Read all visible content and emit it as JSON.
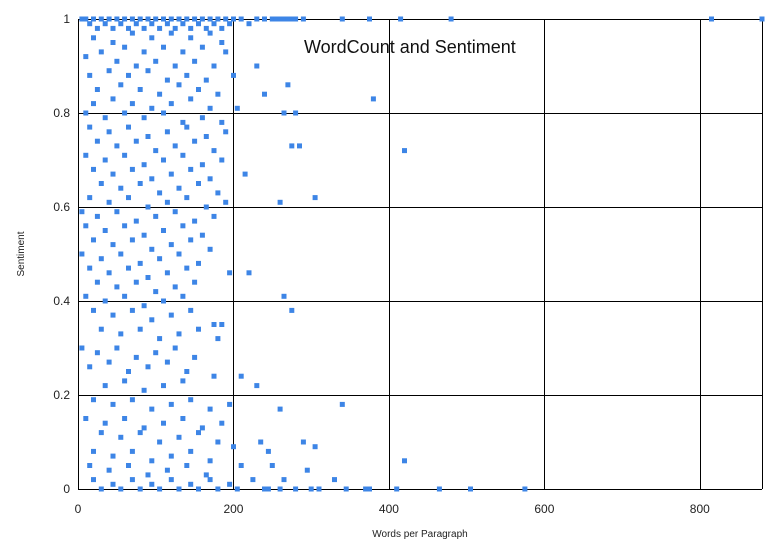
{
  "chart_data": {
    "type": "scatter",
    "title": "WordCount and Sentiment",
    "xlabel": "Words per Paragraph",
    "ylabel": "Sentiment",
    "xlim": [
      0,
      880
    ],
    "ylim": [
      0,
      1
    ],
    "xticks": [
      "0",
      "200",
      "400",
      "600",
      "800"
    ],
    "yticks": [
      "0",
      "0.2",
      "0.4",
      "0.6",
      "0.8",
      "1"
    ],
    "grid": true,
    "legend": "none",
    "marker_color": "#3d85e6",
    "series": [
      {
        "points": [
          [
            5,
            1
          ],
          [
            10,
            1
          ],
          [
            15,
            0.99
          ],
          [
            20,
            1
          ],
          [
            25,
            0.98
          ],
          [
            30,
            1
          ],
          [
            35,
            0.99
          ],
          [
            40,
            1
          ],
          [
            45,
            0.98
          ],
          [
            50,
            1
          ],
          [
            55,
            0.99
          ],
          [
            60,
            1
          ],
          [
            65,
            0.98
          ],
          [
            70,
            1
          ],
          [
            75,
            0.99
          ],
          [
            80,
            1
          ],
          [
            85,
            0.98
          ],
          [
            90,
            1
          ],
          [
            95,
            0.99
          ],
          [
            100,
            1
          ],
          [
            105,
            0.98
          ],
          [
            110,
            1
          ],
          [
            115,
            0.99
          ],
          [
            120,
            1
          ],
          [
            125,
            0.98
          ],
          [
            130,
            1
          ],
          [
            135,
            0.99
          ],
          [
            140,
            1
          ],
          [
            145,
            0.98
          ],
          [
            150,
            1
          ],
          [
            155,
            0.99
          ],
          [
            160,
            1
          ],
          [
            165,
            0.98
          ],
          [
            170,
            1
          ],
          [
            175,
            0.99
          ],
          [
            180,
            1
          ],
          [
            185,
            0.98
          ],
          [
            190,
            1
          ],
          [
            195,
            0.99
          ],
          [
            200,
            1
          ],
          [
            210,
            1
          ],
          [
            220,
            0.99
          ],
          [
            230,
            1
          ],
          [
            240,
            1
          ],
          [
            250,
            1
          ],
          [
            255,
            1
          ],
          [
            260,
            1
          ],
          [
            265,
            1
          ],
          [
            270,
            1
          ],
          [
            275,
            1
          ],
          [
            280,
            1
          ],
          [
            290,
            1
          ],
          [
            340,
            1
          ],
          [
            375,
            1
          ],
          [
            415,
            1
          ],
          [
            480,
            1
          ],
          [
            815,
            1
          ],
          [
            880,
            1
          ],
          [
            20,
            0.96
          ],
          [
            45,
            0.95
          ],
          [
            70,
            0.97
          ],
          [
            95,
            0.96
          ],
          [
            120,
            0.97
          ],
          [
            145,
            0.96
          ],
          [
            170,
            0.97
          ],
          [
            185,
            0.95
          ],
          [
            30,
            0.93
          ],
          [
            60,
            0.94
          ],
          [
            85,
            0.93
          ],
          [
            110,
            0.94
          ],
          [
            135,
            0.93
          ],
          [
            160,
            0.94
          ],
          [
            190,
            0.93
          ],
          [
            10,
            0.92
          ],
          [
            50,
            0.91
          ],
          [
            75,
            0.9
          ],
          [
            100,
            0.91
          ],
          [
            125,
            0.9
          ],
          [
            150,
            0.91
          ],
          [
            175,
            0.9
          ],
          [
            230,
            0.9
          ],
          [
            15,
            0.88
          ],
          [
            40,
            0.89
          ],
          [
            65,
            0.88
          ],
          [
            90,
            0.89
          ],
          [
            115,
            0.87
          ],
          [
            140,
            0.88
          ],
          [
            165,
            0.87
          ],
          [
            200,
            0.88
          ],
          [
            270,
            0.86
          ],
          [
            25,
            0.85
          ],
          [
            55,
            0.86
          ],
          [
            80,
            0.85
          ],
          [
            105,
            0.84
          ],
          [
            130,
            0.86
          ],
          [
            155,
            0.85
          ],
          [
            180,
            0.84
          ],
          [
            240,
            0.84
          ],
          [
            20,
            0.82
          ],
          [
            45,
            0.83
          ],
          [
            70,
            0.82
          ],
          [
            95,
            0.81
          ],
          [
            120,
            0.82
          ],
          [
            145,
            0.83
          ],
          [
            170,
            0.81
          ],
          [
            205,
            0.81
          ],
          [
            380,
            0.83
          ],
          [
            10,
            0.8
          ],
          [
            35,
            0.79
          ],
          [
            60,
            0.8
          ],
          [
            85,
            0.79
          ],
          [
            110,
            0.8
          ],
          [
            135,
            0.78
          ],
          [
            160,
            0.79
          ],
          [
            185,
            0.78
          ],
          [
            265,
            0.8
          ],
          [
            280,
            0.8
          ],
          [
            15,
            0.77
          ],
          [
            40,
            0.76
          ],
          [
            65,
            0.77
          ],
          [
            90,
            0.75
          ],
          [
            115,
            0.76
          ],
          [
            140,
            0.77
          ],
          [
            165,
            0.75
          ],
          [
            190,
            0.76
          ],
          [
            25,
            0.74
          ],
          [
            50,
            0.73
          ],
          [
            75,
            0.74
          ],
          [
            100,
            0.72
          ],
          [
            125,
            0.73
          ],
          [
            150,
            0.74
          ],
          [
            175,
            0.72
          ],
          [
            275,
            0.73
          ],
          [
            285,
            0.73
          ],
          [
            420,
            0.72
          ],
          [
            10,
            0.71
          ],
          [
            35,
            0.7
          ],
          [
            60,
            0.71
          ],
          [
            85,
            0.69
          ],
          [
            110,
            0.7
          ],
          [
            135,
            0.71
          ],
          [
            160,
            0.69
          ],
          [
            185,
            0.7
          ],
          [
            20,
            0.68
          ],
          [
            45,
            0.67
          ],
          [
            70,
            0.68
          ],
          [
            95,
            0.66
          ],
          [
            120,
            0.67
          ],
          [
            145,
            0.68
          ],
          [
            170,
            0.66
          ],
          [
            215,
            0.67
          ],
          [
            30,
            0.65
          ],
          [
            55,
            0.64
          ],
          [
            80,
            0.65
          ],
          [
            105,
            0.63
          ],
          [
            130,
            0.64
          ],
          [
            155,
            0.65
          ],
          [
            180,
            0.63
          ],
          [
            15,
            0.62
          ],
          [
            40,
            0.61
          ],
          [
            65,
            0.62
          ],
          [
            90,
            0.6
          ],
          [
            115,
            0.61
          ],
          [
            140,
            0.62
          ],
          [
            165,
            0.6
          ],
          [
            190,
            0.61
          ],
          [
            260,
            0.61
          ],
          [
            305,
            0.62
          ],
          [
            5,
            0.59
          ],
          [
            25,
            0.58
          ],
          [
            50,
            0.59
          ],
          [
            75,
            0.57
          ],
          [
            100,
            0.58
          ],
          [
            125,
            0.59
          ],
          [
            150,
            0.57
          ],
          [
            175,
            0.58
          ],
          [
            10,
            0.56
          ],
          [
            35,
            0.55
          ],
          [
            60,
            0.56
          ],
          [
            85,
            0.54
          ],
          [
            110,
            0.55
          ],
          [
            135,
            0.56
          ],
          [
            160,
            0.54
          ],
          [
            20,
            0.53
          ],
          [
            45,
            0.52
          ],
          [
            70,
            0.53
          ],
          [
            95,
            0.51
          ],
          [
            120,
            0.52
          ],
          [
            145,
            0.53
          ],
          [
            170,
            0.51
          ],
          [
            5,
            0.5
          ],
          [
            30,
            0.49
          ],
          [
            55,
            0.5
          ],
          [
            80,
            0.48
          ],
          [
            105,
            0.49
          ],
          [
            130,
            0.5
          ],
          [
            155,
            0.48
          ],
          [
            15,
            0.47
          ],
          [
            40,
            0.46
          ],
          [
            65,
            0.47
          ],
          [
            90,
            0.45
          ],
          [
            115,
            0.46
          ],
          [
            140,
            0.47
          ],
          [
            195,
            0.46
          ],
          [
            220,
            0.46
          ],
          [
            25,
            0.44
          ],
          [
            50,
            0.43
          ],
          [
            75,
            0.44
          ],
          [
            100,
            0.42
          ],
          [
            125,
            0.43
          ],
          [
            150,
            0.44
          ],
          [
            10,
            0.41
          ],
          [
            35,
            0.4
          ],
          [
            60,
            0.41
          ],
          [
            85,
            0.39
          ],
          [
            110,
            0.4
          ],
          [
            135,
            0.41
          ],
          [
            265,
            0.41
          ],
          [
            275,
            0.38
          ],
          [
            20,
            0.38
          ],
          [
            45,
            0.37
          ],
          [
            70,
            0.38
          ],
          [
            95,
            0.36
          ],
          [
            120,
            0.37
          ],
          [
            145,
            0.38
          ],
          [
            175,
            0.35
          ],
          [
            185,
            0.35
          ],
          [
            30,
            0.34
          ],
          [
            55,
            0.33
          ],
          [
            80,
            0.34
          ],
          [
            105,
            0.32
          ],
          [
            130,
            0.33
          ],
          [
            155,
            0.34
          ],
          [
            180,
            0.32
          ],
          [
            5,
            0.3
          ],
          [
            25,
            0.29
          ],
          [
            50,
            0.3
          ],
          [
            75,
            0.28
          ],
          [
            100,
            0.29
          ],
          [
            125,
            0.3
          ],
          [
            150,
            0.28
          ],
          [
            15,
            0.26
          ],
          [
            40,
            0.27
          ],
          [
            65,
            0.25
          ],
          [
            90,
            0.26
          ],
          [
            115,
            0.27
          ],
          [
            140,
            0.25
          ],
          [
            175,
            0.24
          ],
          [
            210,
            0.24
          ],
          [
            35,
            0.22
          ],
          [
            60,
            0.23
          ],
          [
            85,
            0.21
          ],
          [
            110,
            0.22
          ],
          [
            135,
            0.23
          ],
          [
            230,
            0.22
          ],
          [
            20,
            0.19
          ],
          [
            45,
            0.18
          ],
          [
            70,
            0.19
          ],
          [
            95,
            0.17
          ],
          [
            120,
            0.18
          ],
          [
            145,
            0.19
          ],
          [
            170,
            0.17
          ],
          [
            195,
            0.18
          ],
          [
            260,
            0.17
          ],
          [
            340,
            0.18
          ],
          [
            10,
            0.15
          ],
          [
            35,
            0.14
          ],
          [
            60,
            0.15
          ],
          [
            85,
            0.13
          ],
          [
            110,
            0.14
          ],
          [
            135,
            0.15
          ],
          [
            160,
            0.13
          ],
          [
            185,
            0.14
          ],
          [
            30,
            0.12
          ],
          [
            55,
            0.11
          ],
          [
            80,
            0.12
          ],
          [
            105,
            0.1
          ],
          [
            130,
            0.11
          ],
          [
            155,
            0.12
          ],
          [
            180,
            0.1
          ],
          [
            235,
            0.1
          ],
          [
            290,
            0.1
          ],
          [
            20,
            0.08
          ],
          [
            45,
            0.07
          ],
          [
            70,
            0.08
          ],
          [
            95,
            0.06
          ],
          [
            120,
            0.07
          ],
          [
            145,
            0.08
          ],
          [
            170,
            0.06
          ],
          [
            200,
            0.09
          ],
          [
            245,
            0.08
          ],
          [
            305,
            0.09
          ],
          [
            15,
            0.05
          ],
          [
            40,
            0.04
          ],
          [
            65,
            0.05
          ],
          [
            90,
            0.03
          ],
          [
            115,
            0.04
          ],
          [
            140,
            0.05
          ],
          [
            165,
            0.03
          ],
          [
            210,
            0.05
          ],
          [
            250,
            0.05
          ],
          [
            295,
            0.04
          ],
          [
            420,
            0.06
          ],
          [
            20,
            0.02
          ],
          [
            45,
            0.01
          ],
          [
            70,
            0.02
          ],
          [
            95,
            0.01
          ],
          [
            120,
            0.02
          ],
          [
            145,
            0.01
          ],
          [
            170,
            0.02
          ],
          [
            195,
            0.01
          ],
          [
            225,
            0.02
          ],
          [
            265,
            0.02
          ],
          [
            330,
            0.02
          ],
          [
            30,
            0
          ],
          [
            55,
            0
          ],
          [
            80,
            0
          ],
          [
            105,
            0
          ],
          [
            130,
            0
          ],
          [
            155,
            0
          ],
          [
            180,
            0
          ],
          [
            205,
            0
          ],
          [
            240,
            0
          ],
          [
            245,
            0
          ],
          [
            260,
            0
          ],
          [
            280,
            0
          ],
          [
            300,
            0
          ],
          [
            310,
            0
          ],
          [
            345,
            0
          ],
          [
            370,
            0
          ],
          [
            375,
            0
          ],
          [
            410,
            0
          ],
          [
            465,
            0
          ],
          [
            505,
            0
          ],
          [
            575,
            0
          ]
        ]
      }
    ]
  }
}
